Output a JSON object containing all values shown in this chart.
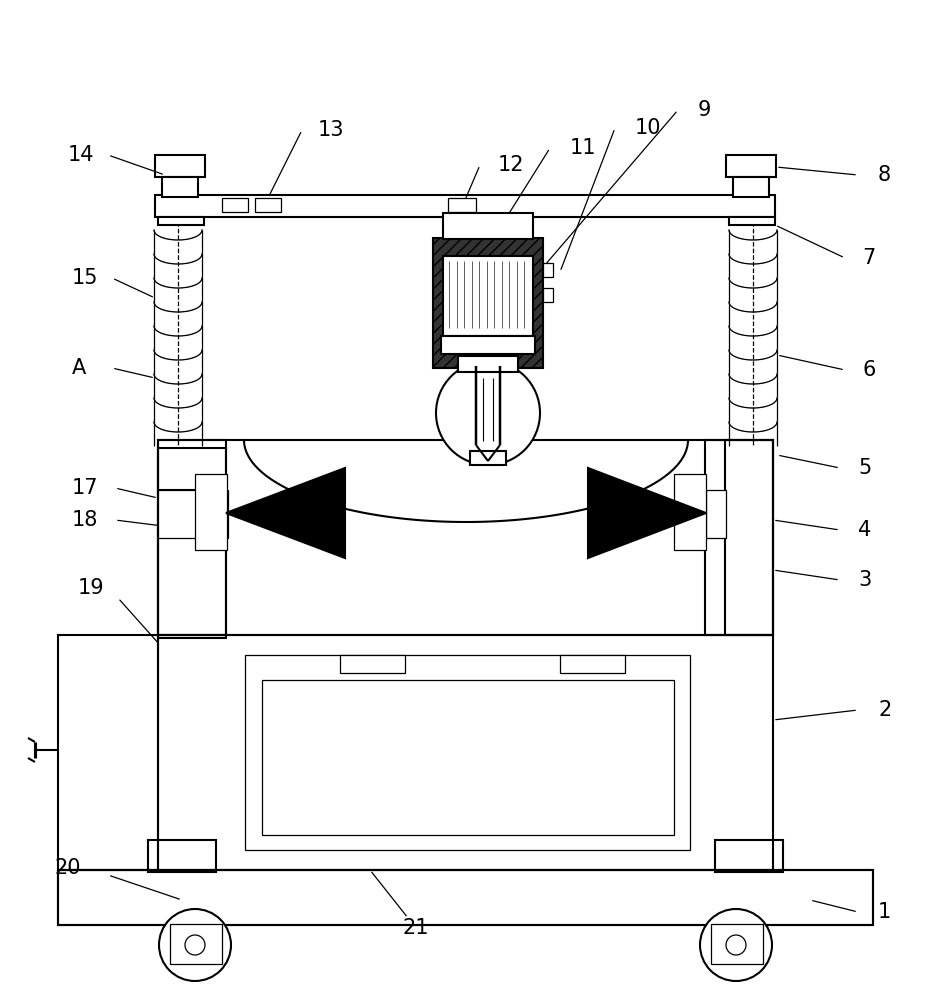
{
  "bg": "#ffffff",
  "lc": "#000000",
  "lw": 1.5,
  "tlw": 0.9,
  "fig_w": 9.31,
  "fig_h": 10.0,
  "dpi": 100
}
